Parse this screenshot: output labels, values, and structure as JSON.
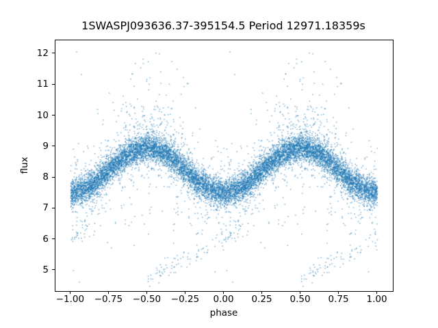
{
  "figure": {
    "background": "#ffffff",
    "spine_color": "#000000"
  },
  "chart_data": {
    "type": "scatter",
    "title": "1SWASPJ093636.37-395154.5 Period 12971.18359s",
    "xlabel": "phase",
    "ylabel": "flux",
    "xlim": [
      -1.1,
      1.1
    ],
    "ylim": [
      4.337,
      12.44
    ],
    "grid": false,
    "legend": null,
    "x_ticks": [
      -1.0,
      -0.75,
      -0.5,
      -0.25,
      0.0,
      0.25,
      0.5,
      0.75,
      1.0
    ],
    "x_tick_labels": [
      "−1.00",
      "−0.75",
      "−0.50",
      "−0.25",
      "0.00",
      "0.25",
      "0.50",
      "0.75",
      "1.00"
    ],
    "y_ticks": [
      5,
      6,
      7,
      8,
      9,
      10,
      11,
      12
    ],
    "y_tick_labels": [
      "5",
      "6",
      "7",
      "8",
      "9",
      "10",
      "11",
      "12"
    ],
    "marker_color": "#1f77b4",
    "marker_alpha": 0.68,
    "marker_size_px": 1.4,
    "description": "Phase-folded SuperWASP light curve; every base point at phase p in [0,1) is also plotted at p-1. Dense sinusoidal band: flux ~7.53 at phase 0/±1 (trough), ~8.97 at ±0.5 (peak); sparse bright outliers up to ~12.1 above the peaks and faint outliers down to ~4.6 with a rising streak from (−0.5, 4.7) to (0.1, 6.3) duplicated at +1.",
    "model": {
      "seed": 7,
      "duplicate_phase_offset": -1,
      "band": {
        "n": 6100,
        "mean": 8.25,
        "amplitude": 0.72,
        "noise_mix": [
          [
            0.8,
            0.21
          ],
          [
            0.15,
            0.42
          ],
          [
            0.05,
            0.8
          ]
        ]
      },
      "high_outliers": {
        "n": 135,
        "peak_phase": 0.5,
        "peak_sigma": 0.16,
        "frac_near_peak": 0.75,
        "offset": 0.5,
        "exp_scale": 1.05,
        "flux_cap": 12.05
      },
      "low_outliers": {
        "n": 70,
        "start": 7.05,
        "exp_scale": 0.75,
        "flux_floor": 4.6
      },
      "streak": {
        "n": 95,
        "phase_start": 0.5,
        "phase_span": 0.62,
        "flux_start": 4.72,
        "flux_slope": 2.55,
        "noise_sd": 0.16,
        "density_pow": 1.25
      },
      "extra_points": [
        [
          0.038,
          12.07
        ],
        [
          0.421,
          11.69
        ],
        [
          0.586,
          11.42
        ]
      ]
    }
  }
}
